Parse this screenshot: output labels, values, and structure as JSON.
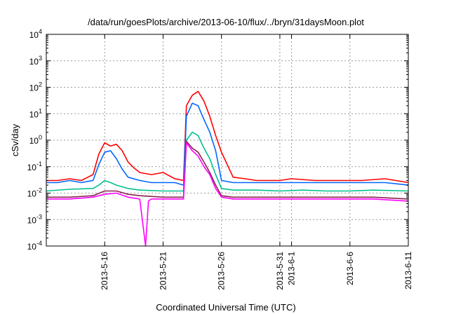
{
  "chart_data": {
    "type": "line",
    "title": "/data/run/goesPlots/archive/2013-06-10/flux/../bryn/31daysMoon.plot",
    "xlabel": "Coordinated Universal Time (UTC)",
    "ylabel": "cSv/day",
    "x_scale": "time",
    "xlim": [
      "2013-05-11",
      "2013-06-11"
    ],
    "x_ticks": [
      "2013-5-16",
      "2013-5-21",
      "2013-5-26",
      "2013-5-31",
      "2013-6-1",
      "2013-6-6",
      "2013-6-11"
    ],
    "y_scale": "log",
    "ylim": [
      0.0001,
      10000
    ],
    "y_ticks": [
      {
        "value": 0.0001,
        "base": "10",
        "exp": "-4"
      },
      {
        "value": 0.001,
        "base": "10",
        "exp": "-3"
      },
      {
        "value": 0.01,
        "base": "10",
        "exp": "-2"
      },
      {
        "value": 0.1,
        "base": "10",
        "exp": "-1"
      },
      {
        "value": 1,
        "base": "10",
        "exp": "0"
      },
      {
        "value": 10,
        "base": "10",
        "exp": "1"
      },
      {
        "value": 100,
        "base": "10",
        "exp": "2"
      },
      {
        "value": 1000,
        "base": "10",
        "exp": "3"
      },
      {
        "value": 10000,
        "base": "10",
        "exp": "4"
      }
    ],
    "grid": true,
    "legend": "none",
    "series": [
      {
        "color": "#ff0000",
        "x": [
          "2013-05-11",
          "2013-05-12",
          "2013-05-13",
          "2013-05-14",
          "2013-05-15",
          "2013-05-15T12:00",
          "2013-05-16",
          "2013-05-16T12:00",
          "2013-05-17",
          "2013-05-17T12:00",
          "2013-05-18",
          "2013-05-18T12:00",
          "2013-05-19",
          "2013-05-20",
          "2013-05-21",
          "2013-05-22",
          "2013-05-22T18:00",
          "2013-05-23",
          "2013-05-23T12:00",
          "2013-05-24",
          "2013-05-24T12:00",
          "2013-05-25",
          "2013-05-25T12:00",
          "2013-05-26",
          "2013-05-27",
          "2013-05-28",
          "2013-05-29",
          "2013-05-31",
          "2013-06-01",
          "2013-06-03",
          "2013-06-05",
          "2013-06-07",
          "2013-06-09",
          "2013-06-11"
        ],
        "values": [
          0.03,
          0.03,
          0.035,
          0.03,
          0.05,
          0.3,
          0.8,
          0.6,
          0.7,
          0.4,
          0.15,
          0.09,
          0.06,
          0.05,
          0.06,
          0.035,
          0.03,
          20,
          50,
          70,
          30,
          8,
          1.5,
          0.35,
          0.04,
          0.035,
          0.03,
          0.03,
          0.035,
          0.03,
          0.03,
          0.03,
          0.035,
          0.025
        ]
      },
      {
        "color": "#0066ff",
        "x": [
          "2013-05-11",
          "2013-05-12",
          "2013-05-13",
          "2013-05-14",
          "2013-05-15",
          "2013-05-15T12:00",
          "2013-05-16",
          "2013-05-16T12:00",
          "2013-05-17",
          "2013-05-17T12:00",
          "2013-05-18",
          "2013-05-19",
          "2013-05-20",
          "2013-05-21",
          "2013-05-22",
          "2013-05-22T18:00",
          "2013-05-23",
          "2013-05-23T12:00",
          "2013-05-24",
          "2013-05-24T12:00",
          "2013-05-25",
          "2013-05-25T12:00",
          "2013-05-26",
          "2013-05-27",
          "2013-05-28",
          "2013-05-29",
          "2013-05-31",
          "2013-06-01",
          "2013-06-03",
          "2013-06-05",
          "2013-06-07",
          "2013-06-09",
          "2013-06-11"
        ],
        "values": [
          0.025,
          0.025,
          0.03,
          0.025,
          0.03,
          0.12,
          0.35,
          0.4,
          0.2,
          0.08,
          0.04,
          0.03,
          0.025,
          0.025,
          0.025,
          0.02,
          8,
          25,
          20,
          6,
          2,
          0.4,
          0.03,
          0.025,
          0.025,
          0.025,
          0.025,
          0.025,
          0.025,
          0.025,
          0.025,
          0.025,
          0.02
        ]
      },
      {
        "color": "#00c090",
        "x": [
          "2013-05-11",
          "2013-05-13",
          "2013-05-15",
          "2013-05-15T12:00",
          "2013-05-16",
          "2013-05-16T12:00",
          "2013-05-17",
          "2013-05-18",
          "2013-05-19",
          "2013-05-21",
          "2013-05-22",
          "2013-05-22T18:00",
          "2013-05-23",
          "2013-05-23T12:00",
          "2013-05-24",
          "2013-05-24T12:00",
          "2013-05-25",
          "2013-05-25T12:00",
          "2013-05-26",
          "2013-05-27",
          "2013-05-29",
          "2013-05-31",
          "2013-06-02",
          "2013-06-04",
          "2013-06-06",
          "2013-06-08",
          "2013-06-11"
        ],
        "values": [
          0.012,
          0.014,
          0.015,
          0.02,
          0.03,
          0.025,
          0.02,
          0.015,
          0.013,
          0.012,
          0.012,
          0.012,
          1,
          2,
          1.5,
          0.5,
          0.2,
          0.05,
          0.015,
          0.013,
          0.013,
          0.012,
          0.013,
          0.012,
          0.012,
          0.013,
          0.012
        ]
      },
      {
        "color": "#8a2050",
        "x": [
          "2013-05-11",
          "2013-05-13",
          "2013-05-15",
          "2013-05-16",
          "2013-05-17",
          "2013-05-18",
          "2013-05-19",
          "2013-05-21",
          "2013-05-22",
          "2013-05-22T18:00",
          "2013-05-23",
          "2013-05-23T12:00",
          "2013-05-24",
          "2013-05-24T12:00",
          "2013-05-25",
          "2013-05-25T12:00",
          "2013-05-26",
          "2013-05-27",
          "2013-05-29",
          "2013-05-31",
          "2013-06-02",
          "2013-06-04",
          "2013-06-06",
          "2013-06-08",
          "2013-06-11"
        ],
        "values": [
          0.007,
          0.007,
          0.008,
          0.012,
          0.012,
          0.009,
          0.008,
          0.007,
          0.007,
          0.007,
          0.9,
          0.5,
          0.35,
          0.15,
          0.06,
          0.02,
          0.008,
          0.007,
          0.007,
          0.007,
          0.007,
          0.007,
          0.007,
          0.007,
          0.006
        ]
      },
      {
        "color": "#ff00ff",
        "x": [
          "2013-05-11",
          "2013-05-13",
          "2013-05-15",
          "2013-05-16",
          "2013-05-17",
          "2013-05-18",
          "2013-05-19",
          "2013-05-19T12:00",
          "2013-05-19T18:00",
          "2013-05-20",
          "2013-05-21",
          "2013-05-22",
          "2013-05-22T18:00",
          "2013-05-23",
          "2013-05-23T12:00",
          "2013-05-24",
          "2013-05-24T12:00",
          "2013-05-25",
          "2013-05-25T12:00",
          "2013-05-26",
          "2013-05-27",
          "2013-05-29",
          "2013-05-31",
          "2013-06-02",
          "2013-06-04",
          "2013-06-06",
          "2013-06-08",
          "2013-06-11"
        ],
        "values": [
          0.006,
          0.006,
          0.007,
          0.009,
          0.01,
          0.007,
          0.006,
          0.0001,
          0.005,
          0.006,
          0.006,
          0.006,
          0.006,
          0.8,
          0.4,
          0.25,
          0.1,
          0.05,
          0.015,
          0.007,
          0.006,
          0.006,
          0.006,
          0.006,
          0.006,
          0.006,
          0.006,
          0.005
        ]
      }
    ]
  }
}
